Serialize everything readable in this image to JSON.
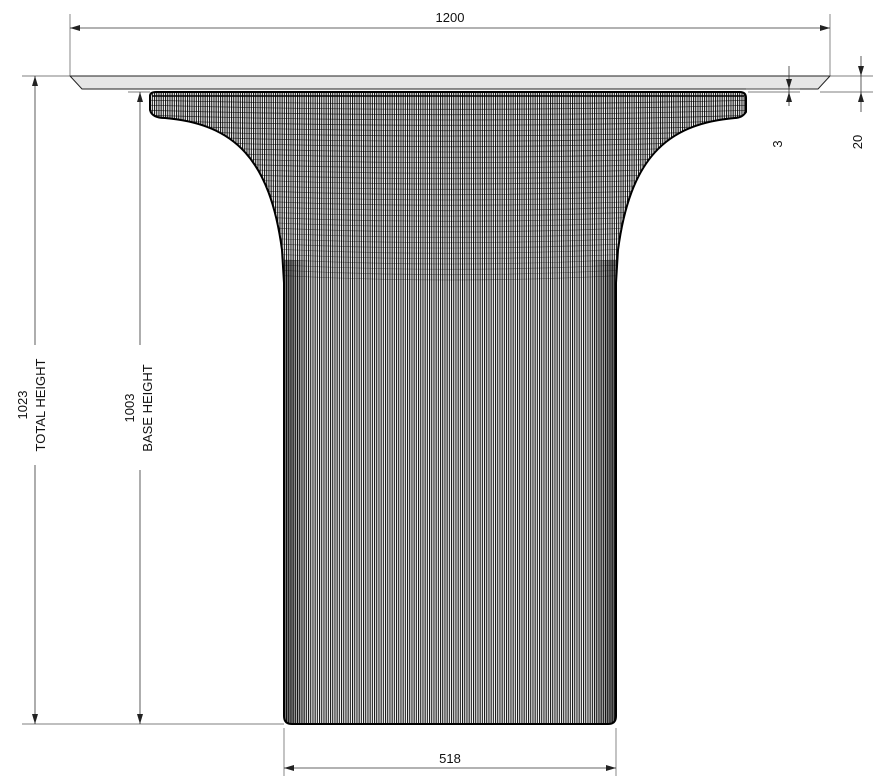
{
  "dimensions": {
    "top_width": "1200",
    "thickness_small": "3",
    "thickness_top": "20",
    "total_height_value": "1023",
    "total_height_label": "TOTAL HEIGHT",
    "base_height_value": "1003",
    "base_height_label": "BASE HEIGHT",
    "base_width": "518"
  }
}
